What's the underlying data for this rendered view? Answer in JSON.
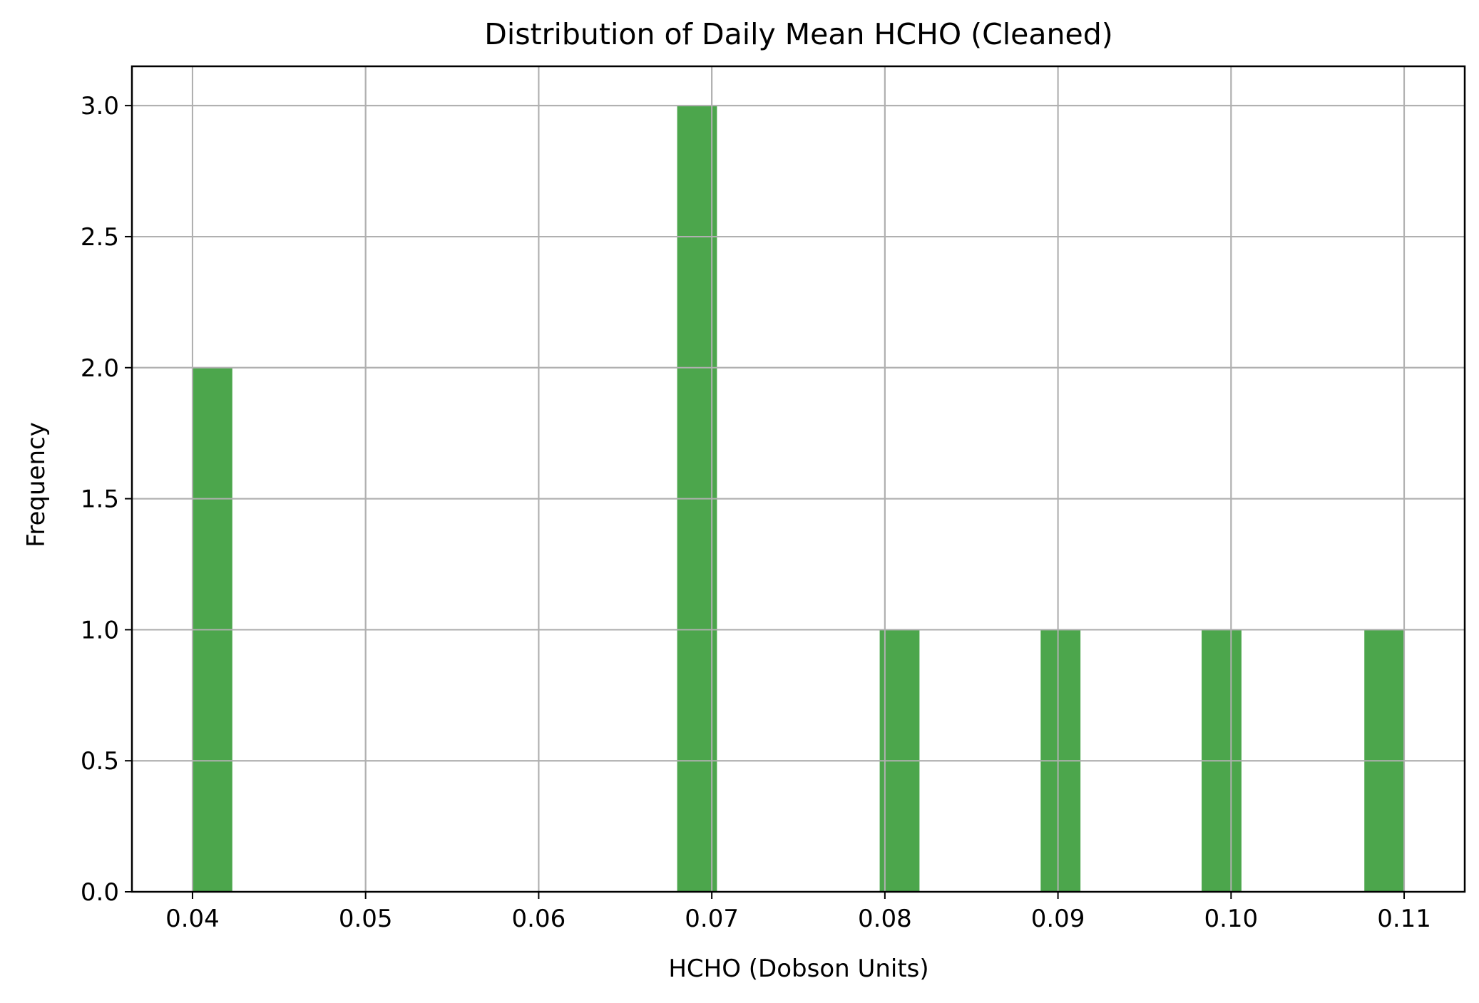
{
  "chart_data": {
    "type": "bar",
    "title": "Distribution of Daily Mean HCHO (Cleaned)",
    "xlabel": "HCHO (Dobson Units)",
    "ylabel": "Frequency",
    "xlim": [
      0.0365,
      0.1135
    ],
    "ylim": [
      0,
      3.15
    ],
    "xticks": [
      0.04,
      0.05,
      0.06,
      0.07,
      0.08,
      0.09,
      0.1,
      0.11
    ],
    "xtick_labels": [
      "0.04",
      "0.05",
      "0.06",
      "0.07",
      "0.08",
      "0.09",
      "0.10",
      "0.11"
    ],
    "yticks": [
      0.0,
      0.5,
      1.0,
      1.5,
      2.0,
      2.5,
      3.0
    ],
    "ytick_labels": [
      "0.0",
      "0.5",
      "1.0",
      "1.5",
      "2.0",
      "2.5",
      "3.0"
    ],
    "grid": true,
    "bar_color": "#4ca64c",
    "bins": [
      {
        "start": 0.04,
        "end": 0.0423,
        "count": 2
      },
      {
        "start": 0.068,
        "end": 0.0703,
        "count": 3
      },
      {
        "start": 0.0797,
        "end": 0.082,
        "count": 1
      },
      {
        "start": 0.089,
        "end": 0.0913,
        "count": 1
      },
      {
        "start": 0.0983,
        "end": 0.1006,
        "count": 1
      },
      {
        "start": 0.1077,
        "end": 0.11,
        "count": 1
      }
    ]
  }
}
